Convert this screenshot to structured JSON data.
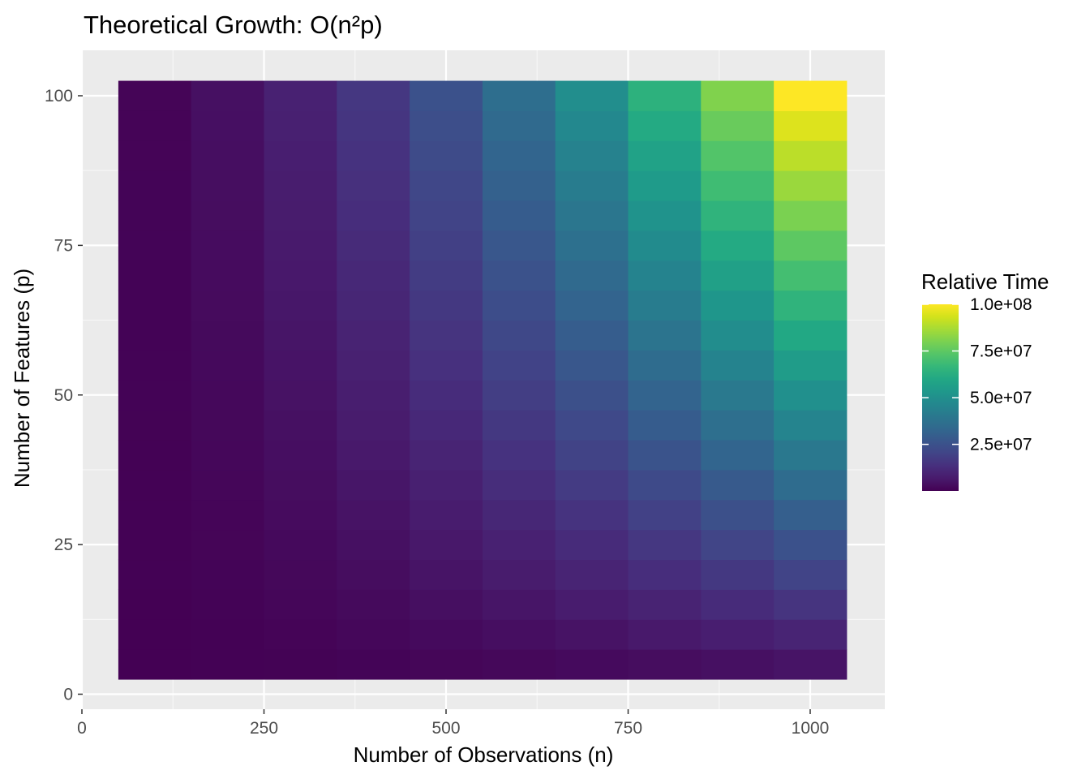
{
  "chart_data": {
    "type": "heatmap",
    "title": "Theoretical Growth: O(n²p)",
    "xlabel": "Number of Observations (n)",
    "ylabel": "Number of Features (p)",
    "x": [
      100,
      200,
      300,
      400,
      500,
      600,
      700,
      800,
      900,
      1000
    ],
    "y": [
      5,
      10,
      15,
      20,
      25,
      30,
      35,
      40,
      45,
      50,
      55,
      60,
      65,
      70,
      75,
      80,
      85,
      90,
      95,
      100
    ],
    "value_formula": "n^2 * p",
    "xlim": [
      0,
      1050
    ],
    "ylim": [
      0,
      102.5
    ],
    "x_ticks": [
      "0",
      "250",
      "500",
      "750",
      "1000"
    ],
    "y_ticks": [
      "0",
      "25",
      "50",
      "75",
      "100"
    ],
    "grid": true,
    "colormap": "viridis",
    "legend": {
      "title": "Relative Time",
      "position": "right",
      "breaks": [
        "2.5e+07",
        "5.0e+07",
        "7.5e+07",
        "1.0e+08"
      ],
      "min": 50000,
      "max": 100000000
    },
    "panel_background": "#ebebeb",
    "grid_color": "#ffffff"
  }
}
